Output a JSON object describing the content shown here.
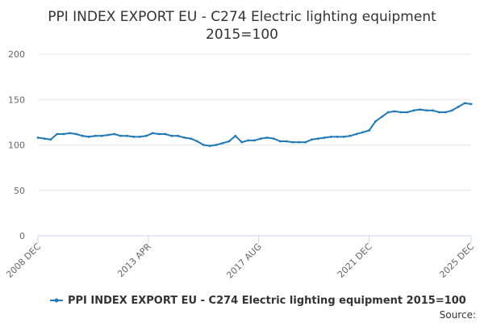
{
  "chart_data": {
    "type": "line",
    "title_line1": "PPI INDEX EXPORT EU - C274 Electric lighting equipment",
    "title_line2": "2015=100",
    "xlabel": "",
    "ylabel": "",
    "ylim": [
      0,
      200
    ],
    "yticks": [
      "0",
      "50",
      "100",
      "150",
      "200"
    ],
    "xticks": [
      "2008 DEC",
      "2013 APR",
      "2017 AUG",
      "2021 DEC",
      "2025 DEC"
    ],
    "xlim": [
      "2008-12",
      "2025-12"
    ],
    "grid": true,
    "legend_position": "bottom",
    "series": [
      {
        "name": "PPI INDEX EXPORT EU - C274 Electric lighting equipment 2015=100",
        "color": "#1f7ab7",
        "x": [
          "2008-12",
          "2009-03",
          "2009-06",
          "2009-09",
          "2009-12",
          "2010-03",
          "2010-06",
          "2010-09",
          "2010-12",
          "2011-03",
          "2011-06",
          "2011-09",
          "2011-12",
          "2012-03",
          "2012-06",
          "2012-09",
          "2012-12",
          "2013-03",
          "2013-06",
          "2013-09",
          "2013-12",
          "2014-03",
          "2014-06",
          "2014-09",
          "2014-12",
          "2015-03",
          "2015-06",
          "2015-09",
          "2015-12",
          "2016-03",
          "2016-06",
          "2016-09",
          "2016-12",
          "2017-03",
          "2017-06",
          "2017-09",
          "2017-12",
          "2018-03",
          "2018-06",
          "2018-09",
          "2018-12",
          "2019-03",
          "2019-06",
          "2019-09",
          "2019-12",
          "2020-03",
          "2020-06",
          "2020-09",
          "2020-12",
          "2021-03",
          "2021-06",
          "2021-09",
          "2021-12",
          "2022-03",
          "2022-06",
          "2022-09",
          "2022-12",
          "2023-03",
          "2023-06",
          "2023-09",
          "2023-12",
          "2024-03",
          "2024-06",
          "2024-09",
          "2024-12",
          "2025-03",
          "2025-06",
          "2025-09",
          "2025-12"
        ],
        "values": [
          108,
          107,
          106,
          112,
          112,
          113,
          112,
          110,
          109,
          110,
          110,
          111,
          112,
          110,
          110,
          109,
          109,
          110,
          113,
          112,
          112,
          110,
          110,
          108,
          107,
          104,
          100,
          99,
          100,
          102,
          104,
          110,
          103,
          105,
          105,
          107,
          108,
          107,
          104,
          104,
          103,
          103,
          103,
          106,
          107,
          108,
          109,
          109,
          109,
          110,
          112,
          114,
          116,
          126,
          131,
          136,
          137,
          136,
          136,
          138,
          139,
          138,
          138,
          136,
          136,
          138,
          142,
          146,
          145
        ]
      }
    ]
  },
  "source_label": "Source:"
}
